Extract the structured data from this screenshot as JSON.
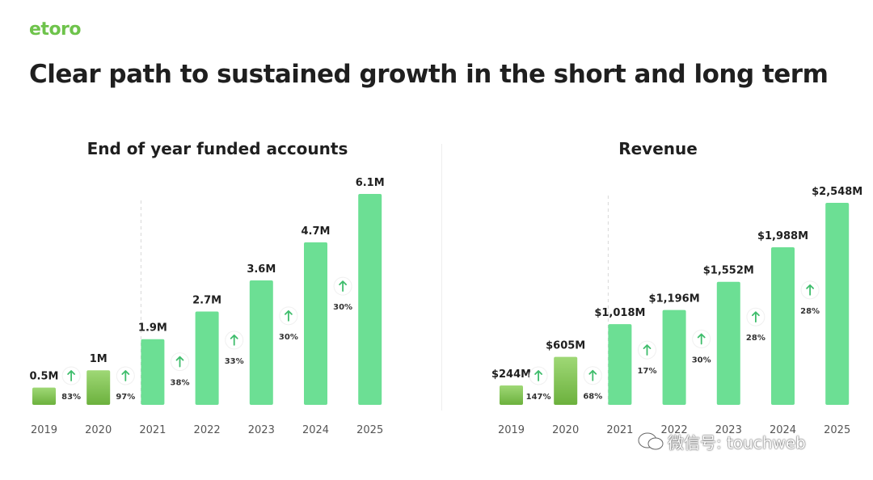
{
  "header": {
    "logo_text": "etoro",
    "title": "Clear path to sustained growth in the short and long term"
  },
  "watermark": {
    "text": "微信号: touchweb",
    "icon": "wechat-icon"
  },
  "colors": {
    "bar": "#6cdf94",
    "bar_historic_top": "#9fd876",
    "bar_historic_bottom": "#6cb13d",
    "arrow": "#3fbd6c",
    "text": "#1f1f1f",
    "axis_text": "#555555",
    "dashed": "#d9d9d9"
  },
  "chart_data": [
    {
      "type": "bar",
      "title": "End of year funded accounts",
      "categories": [
        "2019",
        "2020",
        "2021",
        "2022",
        "2023",
        "2024",
        "2025"
      ],
      "values": [
        0.5,
        1.0,
        1.9,
        2.7,
        3.6,
        4.7,
        6.1
      ],
      "value_labels": [
        "0.5M",
        "1M",
        "1.9M",
        "2.7M",
        "3.6M",
        "4.7M",
        "6.1M"
      ],
      "growth_labels": [
        "83%",
        "97%",
        "38%",
        "33%",
        "30%",
        "30%"
      ],
      "historic_count": 2,
      "forecast_divider_after": "2020",
      "ylim": [
        0,
        6.1
      ],
      "grid": false
    },
    {
      "type": "bar",
      "title": "Revenue",
      "categories": [
        "2019",
        "2020",
        "2021",
        "2022",
        "2023",
        "2024",
        "2025"
      ],
      "values": [
        244,
        605,
        1018,
        1196,
        1552,
        1988,
        2548
      ],
      "value_labels": [
        "$244M",
        "$605M",
        "$1,018M",
        "$1,196M",
        "$1,552M",
        "$1,988M",
        "$2,548M"
      ],
      "growth_labels": [
        "147%",
        "68%",
        "17%",
        "30%",
        "28%",
        "28%"
      ],
      "historic_count": 2,
      "forecast_divider_after": "2020",
      "ylim": [
        0,
        2548
      ],
      "grid": false
    }
  ]
}
